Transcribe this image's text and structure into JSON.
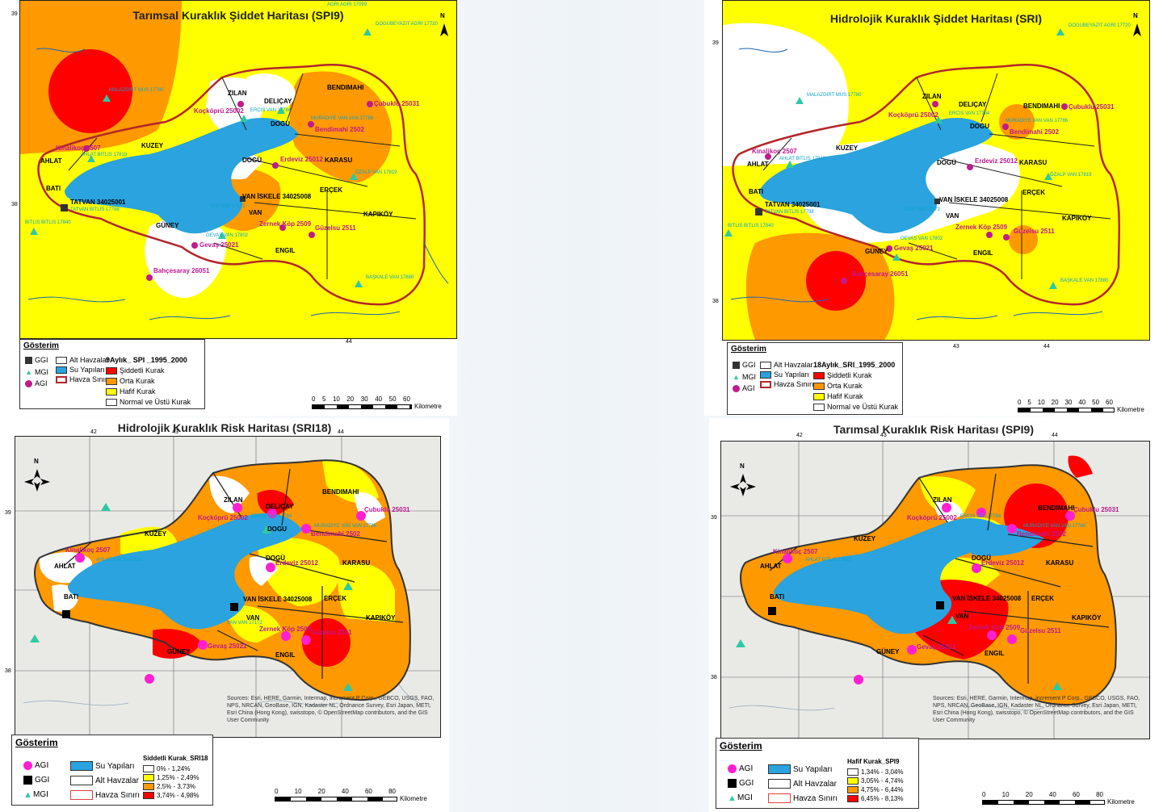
{
  "panels": {
    "tl": {
      "title": "Tarımsal Kuraklık Şiddet Haritası (SPI9)",
      "legend_title": "Gösterim",
      "legend_heading": "9Aylık_ SPI _1995_2000",
      "classes": [
        "Şiddetli Kurak",
        "Orta Kurak",
        "Hafif Kurak",
        "Normal ve Üstü Kurak"
      ],
      "symbols": [
        "GGI",
        "MGI",
        "AGI"
      ],
      "layers": [
        "Alt Havzalar",
        "Su Yapıları",
        "Havza Sınırı"
      ],
      "scale_ticks": [
        "0",
        "5",
        "10",
        "20",
        "30",
        "40",
        "50",
        "60"
      ],
      "scale_unit": "Kilometre"
    },
    "tr": {
      "title": "Hidrolojik Kuraklık Şiddet Haritası (SRI)",
      "legend_title": "Gösterim",
      "legend_heading": "18Aylık_SRI_1995_2000",
      "classes": [
        "Şiddetli Kurak",
        "Orta Kurak",
        "Hafif Kurak",
        "Normal ve Üstü Kurak"
      ],
      "symbols": [
        "GGI",
        "MGI",
        "AGI"
      ],
      "layers": [
        "Alt Havzalar",
        "Su Yapıları",
        "Havza Sınırı"
      ],
      "scale_ticks": [
        "0",
        "5",
        "10",
        "20",
        "30",
        "40",
        "50",
        "60"
      ],
      "scale_unit": "Kilometre"
    },
    "bl": {
      "title": "Hidrolojik Kuraklık Risk Haritası (SRI18)",
      "legend_title": "Gösterim",
      "legend_heading": "Siddetli Kurak_SRI18",
      "classes": [
        "0% - 1,24%",
        "1,25% - 2,49%",
        "2,5% - 3,73%",
        "3,74% - 4,98%"
      ],
      "symbols": [
        "AGI",
        "GGI",
        "MGI"
      ],
      "layers": [
        "Su Yapıları",
        "Alt Havzalar",
        "Havza Sınırı"
      ],
      "scale_ticks": [
        "0",
        "10",
        "20",
        "40",
        "60",
        "80"
      ],
      "scale_unit": "Kilometre",
      "sources": "Sources: Esri, HERE, Garmin, Intermap, increment P Corp., GEBCO, USGS, FAO, NPS, NRCAN, GeoBase, IGN, Kadaster NL, Ordnance Survey, Esri Japan, METI, Esri China (Hong Kong), swisstopo, © OpenStreetMap contributors, and the GIS User Community"
    },
    "br": {
      "title": "Tarımsal Kuraklık Risk Haritası (SPI9)",
      "legend_title": "Gösterim",
      "legend_heading": "Hafif Kurak_SPI9",
      "classes": [
        "1,34% - 3,04%",
        "3,05% - 4,74%",
        "4,75% - 6,44%",
        "6,45% - 8,13%"
      ],
      "symbols": [
        "AGI",
        "GGI",
        "MGI"
      ],
      "layers": [
        "Su Yapıları",
        "Alt Havzalar",
        "Havza Sınırı"
      ],
      "scale_ticks": [
        "0",
        "10",
        "20",
        "40",
        "60",
        "80"
      ],
      "scale_unit": "Kilometre",
      "sources": "Sources: Esri, HERE, Garmin, Intermap, increment P Corp., GEBCO, USGS, FAO, NPS, NRCAN, GeoBase, IGN, Kadaster NL, Ordnance Survey, Esri Japan, METI, Esri China (Hong Kong), swisstopo, © OpenStreetMap contributors, and the GIS User Community"
    }
  },
  "regions": {
    "zilan": "ZILAN",
    "delicay": "DELIÇAY",
    "bendimahi": "BENDIMAHI",
    "dogu": "DOGU",
    "kuzey": "KUZEY",
    "ahlat": "AHLAT",
    "bati": "BATI",
    "dogu2": "DOGÜ",
    "karasu": "KARASU",
    "ercek": "ERÇEK",
    "van": "VAN",
    "kapikoy": "KAPIKÖY",
    "guney": "GÜNEY",
    "engil": "ENGIL"
  },
  "agi": {
    "kockopru": "Koçköprü 25002",
    "cubuklu": "Çubuklu 25031",
    "bendimahi": "Bendimahi 2502",
    "kinalikoc": "Kinalikoç 2507",
    "erdeviz": "Erdeviz 25012",
    "zernek": "Zernek Köp 2509",
    "guzelsu": "Güzelsu 2511",
    "gevas": "Gevaş 25021",
    "bahcesaray": "Bahçesaray 26051"
  },
  "ggi": {
    "tatvan": "TATVAN 34025001",
    "vaniskele": "VAN İSKELE 34025008"
  },
  "mgi": {
    "agri": "AGRI AGRI 17099",
    "dogubeyazit": "DOGUBEYAZIT AGRI 17720",
    "malazgirt": "MALAZGIRT MUS 17780",
    "ercis": "ERCIS VAN 17784",
    "muradiye": "MURADIYE VAN VAN 17786",
    "ahlatbitlis": "AHLAT BITLIS 17810",
    "ozalp": "ÖZALP VAN 17819",
    "tatvanbitlis": "TATVAN BITLIS 17798",
    "bitlis": "BITLIS BITLIS 17840",
    "vanvan": "VAN VAN 17172",
    "gevasvan": "GEVAS VAN 17802",
    "baskale": "BAŞKALE VAN 17880"
  },
  "coords": {
    "lon": [
      "42",
      "43",
      "44"
    ],
    "lat": [
      "39",
      "38"
    ],
    "north": "N"
  },
  "colors": {
    "severe": "#ff0000",
    "moderate": "#ff9900",
    "mild": "#ffff00",
    "normal": "#ffffff",
    "water": "#2aa3de",
    "boundary": "#b3262b",
    "agi": "#c01a8c",
    "agi_bright": "#ff1fd2",
    "mgi": "#2ec9a4"
  }
}
